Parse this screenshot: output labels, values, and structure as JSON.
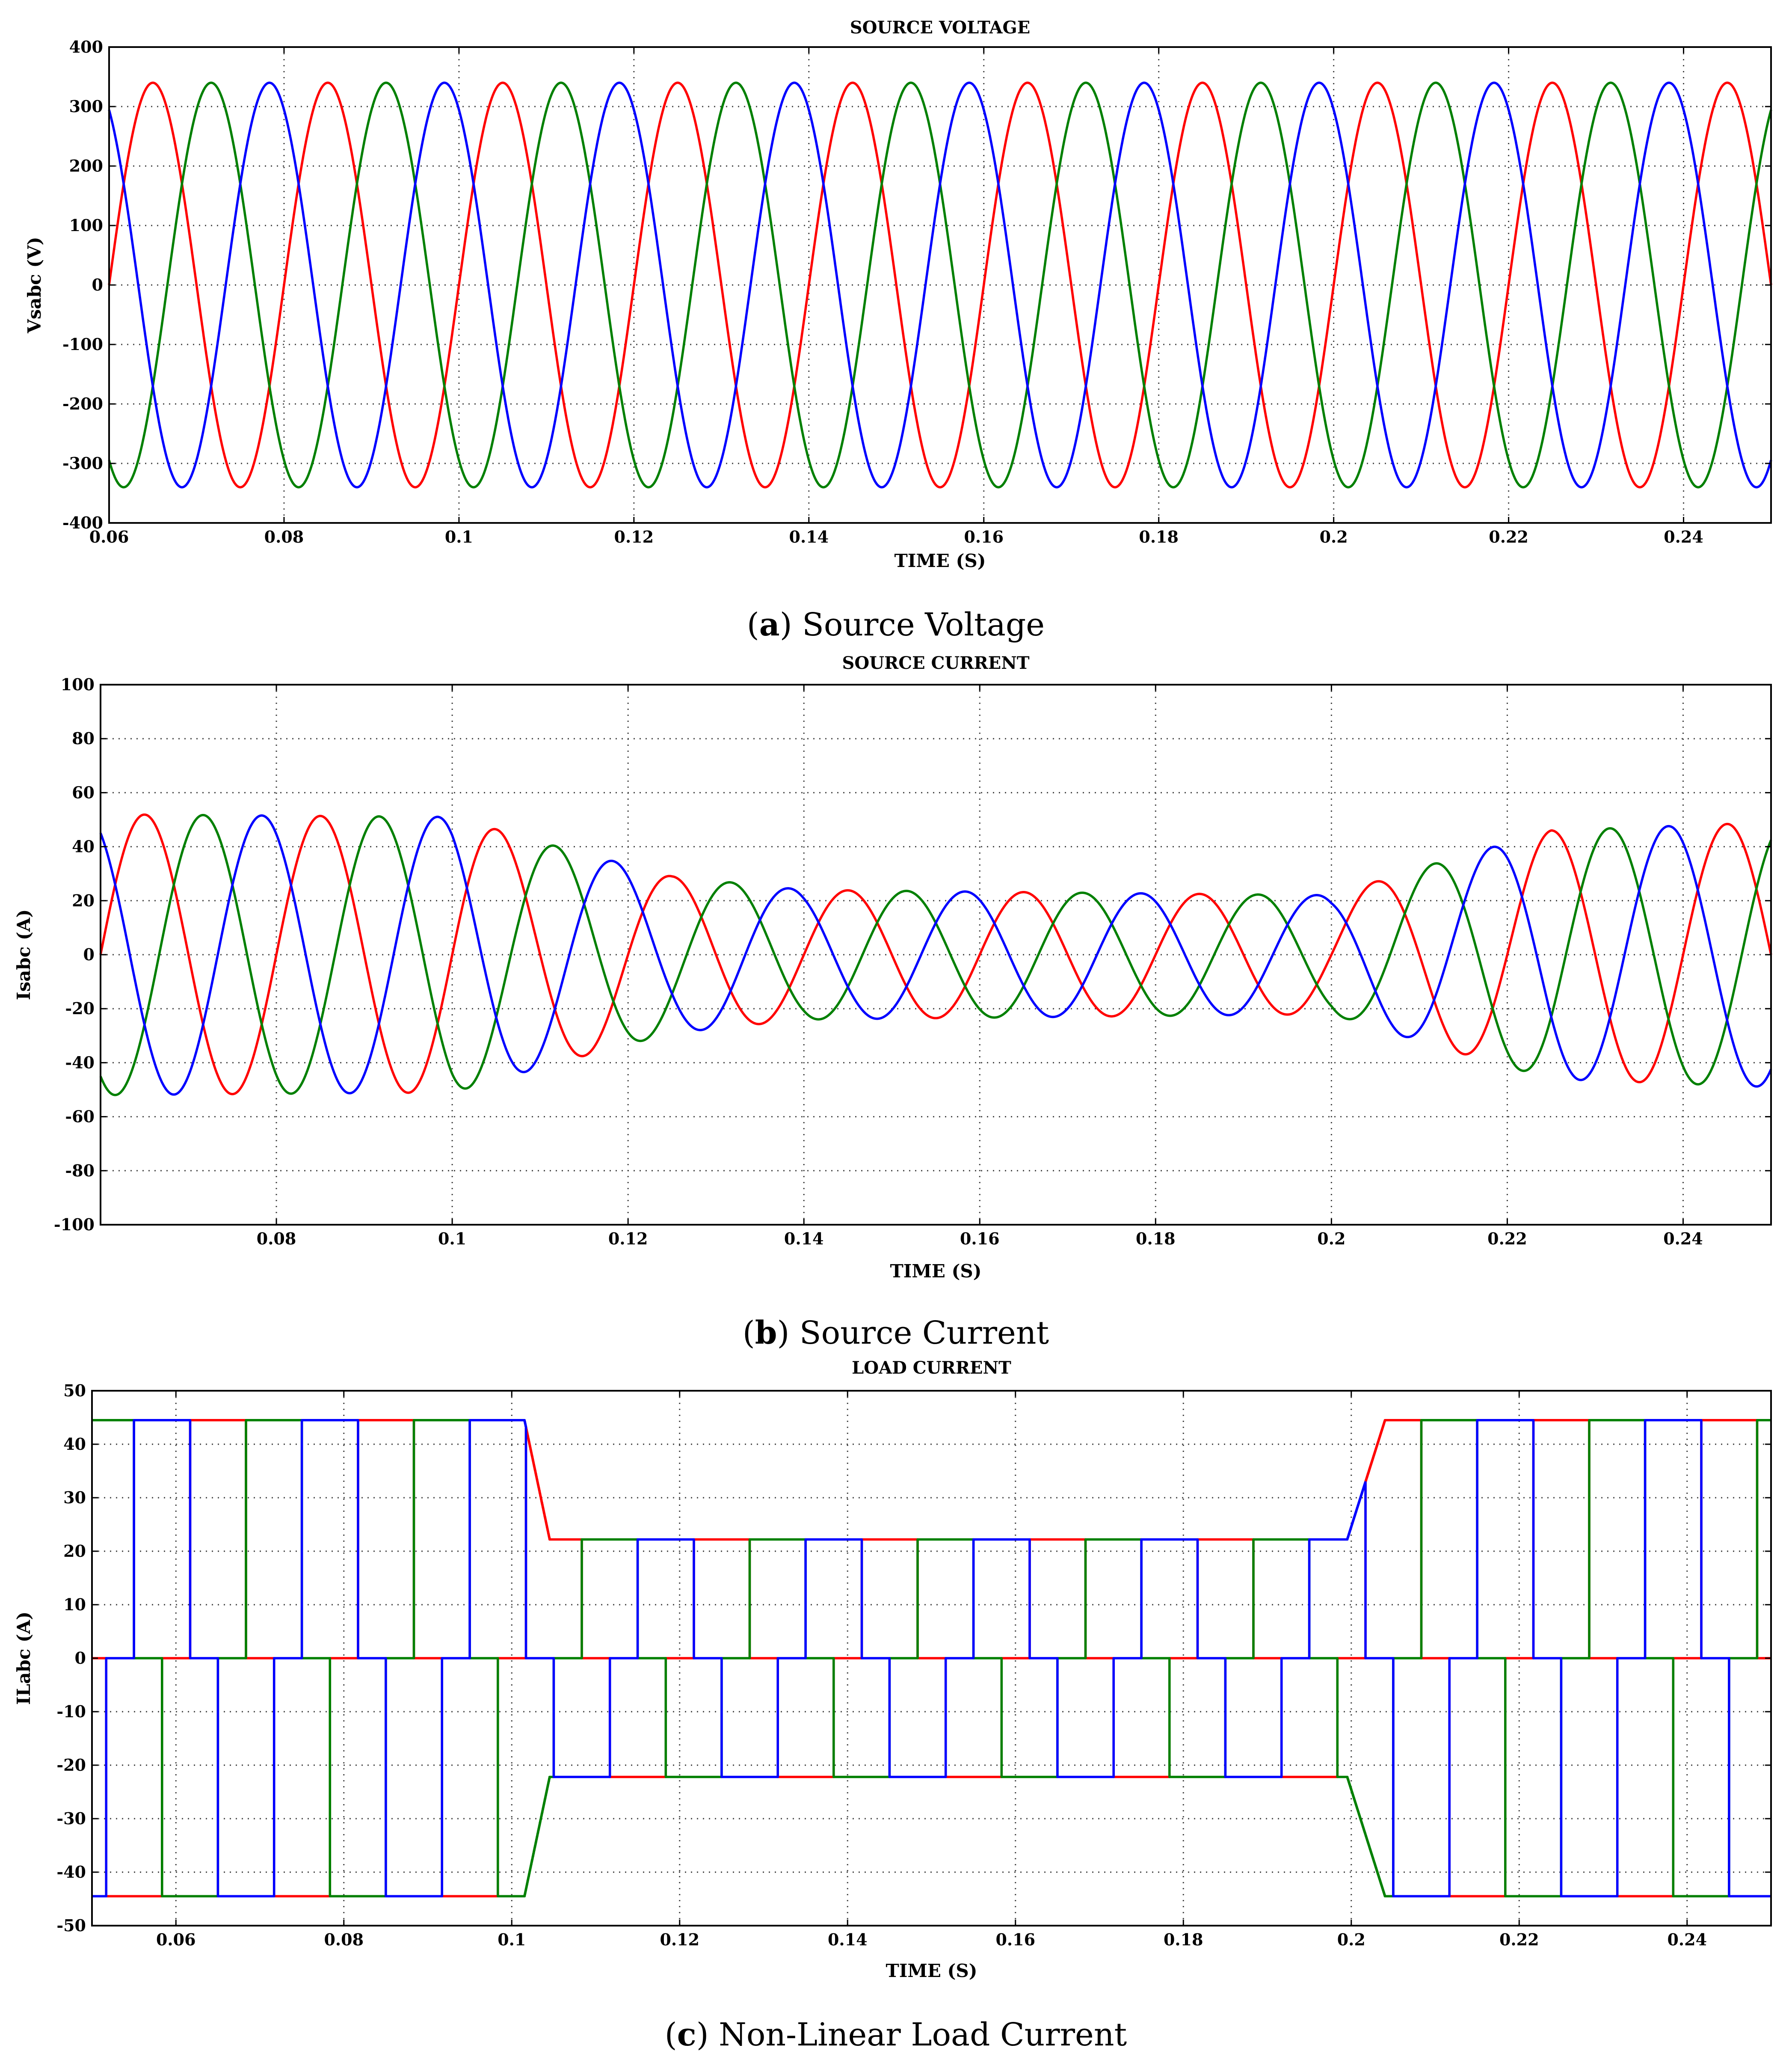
{
  "colors": {
    "phase_a": "#ff0000",
    "phase_b": "#008000",
    "phase_c": "#0000ff"
  },
  "captions": [
    {
      "letter": "a",
      "text": "Source Voltage"
    },
    {
      "letter": "b",
      "text": "Source Current"
    },
    {
      "letter": "c",
      "text": "Non-Linear Load Current"
    }
  ],
  "chart_data": [
    {
      "id": "a",
      "type": "line",
      "title": "SOURCE VOLTAGE",
      "xlabel": "TIME (S)",
      "ylabel": "Vsabc (V)",
      "xlim": [
        0.06,
        0.25
      ],
      "ylim": [
        -400,
        400
      ],
      "grid": true,
      "xticks": [
        0.06,
        0.08,
        0.1,
        0.12,
        0.14,
        0.16,
        0.18,
        0.2,
        0.22,
        0.24
      ],
      "xtick_labels": [
        "0.06",
        "0.08",
        "0.1",
        "0.12",
        "0.14",
        "0.16",
        "0.18",
        "0.2",
        "0.22",
        "0.24"
      ],
      "yticks": [
        -400,
        -300,
        -200,
        -100,
        0,
        100,
        200,
        300,
        400
      ],
      "ytick_labels": [
        "-400",
        "-300",
        "-200",
        "-100",
        "0",
        "100",
        "200",
        "300",
        "400"
      ],
      "waveform": "sinusoidal",
      "frequency_hz": 50,
      "series": [
        {
          "phase": "a",
          "color": "#ff0000",
          "amplitude": [
            [
              0.06,
              340
            ],
            [
              0.25,
              340
            ]
          ],
          "phase_deg": 0
        },
        {
          "phase": "b",
          "color": "#008000",
          "amplitude": [
            [
              0.06,
              340
            ],
            [
              0.25,
              340
            ]
          ],
          "phase_deg": -120
        },
        {
          "phase": "c",
          "color": "#0000ff",
          "amplitude": [
            [
              0.06,
              340
            ],
            [
              0.25,
              340
            ]
          ],
          "phase_deg": 120
        }
      ]
    },
    {
      "id": "b",
      "type": "line",
      "title": "SOURCE CURRENT",
      "xlabel": "TIME (S)",
      "ylabel": "Isabc (A)",
      "xlim": [
        0.06,
        0.25
      ],
      "ylim": [
        -100,
        100
      ],
      "grid": true,
      "xticks": [
        0.08,
        0.1,
        0.12,
        0.14,
        0.16,
        0.18,
        0.2,
        0.22,
        0.24
      ],
      "xtick_labels": [
        "0.08",
        "0.1",
        "0.12",
        "0.14",
        "0.16",
        "0.18",
        "0.2",
        "0.22",
        "0.24"
      ],
      "yticks": [
        -100,
        -80,
        -60,
        -40,
        -20,
        0,
        20,
        40,
        60,
        80,
        100
      ],
      "ytick_labels": [
        "-100",
        "-80",
        "-60",
        "-40",
        "-20",
        "0",
        "20",
        "40",
        "60",
        "80",
        "100"
      ],
      "waveform": "sinusoidal",
      "frequency_hz": 50,
      "series": [
        {
          "phase": "a",
          "color": "#ff0000",
          "amplitude": [
            [
              0.06,
              52
            ],
            [
              0.1,
              51
            ],
            [
              0.112,
              40
            ],
            [
              0.125,
              29
            ],
            [
              0.14,
              24
            ],
            [
              0.2,
              22
            ],
            [
              0.212,
              34
            ],
            [
              0.225,
              46
            ],
            [
              0.25,
              49
            ]
          ],
          "phase_deg": 0
        },
        {
          "phase": "b",
          "color": "#008000",
          "amplitude": [
            [
              0.06,
              52
            ],
            [
              0.1,
              51
            ],
            [
              0.112,
              40
            ],
            [
              0.125,
              29
            ],
            [
              0.14,
              24
            ],
            [
              0.2,
              22
            ],
            [
              0.212,
              34
            ],
            [
              0.225,
              46
            ],
            [
              0.25,
              49
            ]
          ],
          "phase_deg": -120
        },
        {
          "phase": "c",
          "color": "#0000ff",
          "amplitude": [
            [
              0.06,
              52
            ],
            [
              0.1,
              51
            ],
            [
              0.112,
              40
            ],
            [
              0.125,
              29
            ],
            [
              0.14,
              24
            ],
            [
              0.2,
              22
            ],
            [
              0.212,
              34
            ],
            [
              0.225,
              46
            ],
            [
              0.25,
              49
            ]
          ],
          "phase_deg": 120
        }
      ]
    },
    {
      "id": "c",
      "type": "line",
      "title": "LOAD CURRENT",
      "xlabel": "TIME (S)",
      "ylabel": "ILabc (A)",
      "xlim": [
        0.05,
        0.25
      ],
      "ylim": [
        -50,
        50
      ],
      "grid": true,
      "xticks": [
        0.06,
        0.08,
        0.1,
        0.12,
        0.14,
        0.16,
        0.18,
        0.2,
        0.22,
        0.24
      ],
      "xtick_labels": [
        "0.06",
        "0.08",
        "0.1",
        "0.12",
        "0.14",
        "0.16",
        "0.18",
        "0.2",
        "0.22",
        "0.24"
      ],
      "yticks": [
        -50,
        -40,
        -30,
        -20,
        -10,
        0,
        10,
        20,
        30,
        40,
        50
      ],
      "ytick_labels": [
        "-50",
        "-40",
        "-30",
        "-20",
        "-10",
        "0",
        "10",
        "20",
        "30",
        "40",
        "50"
      ],
      "waveform": "six-step",
      "frequency_hz": 50,
      "series": [
        {
          "phase": "a",
          "color": "#ff0000",
          "amplitude": [
            [
              0.05,
              44.5
            ],
            [
              0.1015,
              44.5
            ],
            [
              0.1045,
              22.2
            ],
            [
              0.1995,
              22.2
            ],
            [
              0.204,
              44.5
            ],
            [
              0.25,
              44.5
            ]
          ],
          "phase_deg": 0
        },
        {
          "phase": "b",
          "color": "#008000",
          "amplitude": [
            [
              0.05,
              44.5
            ],
            [
              0.1015,
              44.5
            ],
            [
              0.1045,
              22.2
            ],
            [
              0.1995,
              22.2
            ],
            [
              0.204,
              44.5
            ],
            [
              0.25,
              44.5
            ]
          ],
          "phase_deg": -120
        },
        {
          "phase": "c",
          "color": "#0000ff",
          "amplitude": [
            [
              0.05,
              44.5
            ],
            [
              0.1015,
              44.5
            ],
            [
              0.1045,
              22.2
            ],
            [
              0.1995,
              22.2
            ],
            [
              0.204,
              44.5
            ],
            [
              0.25,
              44.5
            ]
          ],
          "phase_deg": 120
        }
      ]
    }
  ]
}
